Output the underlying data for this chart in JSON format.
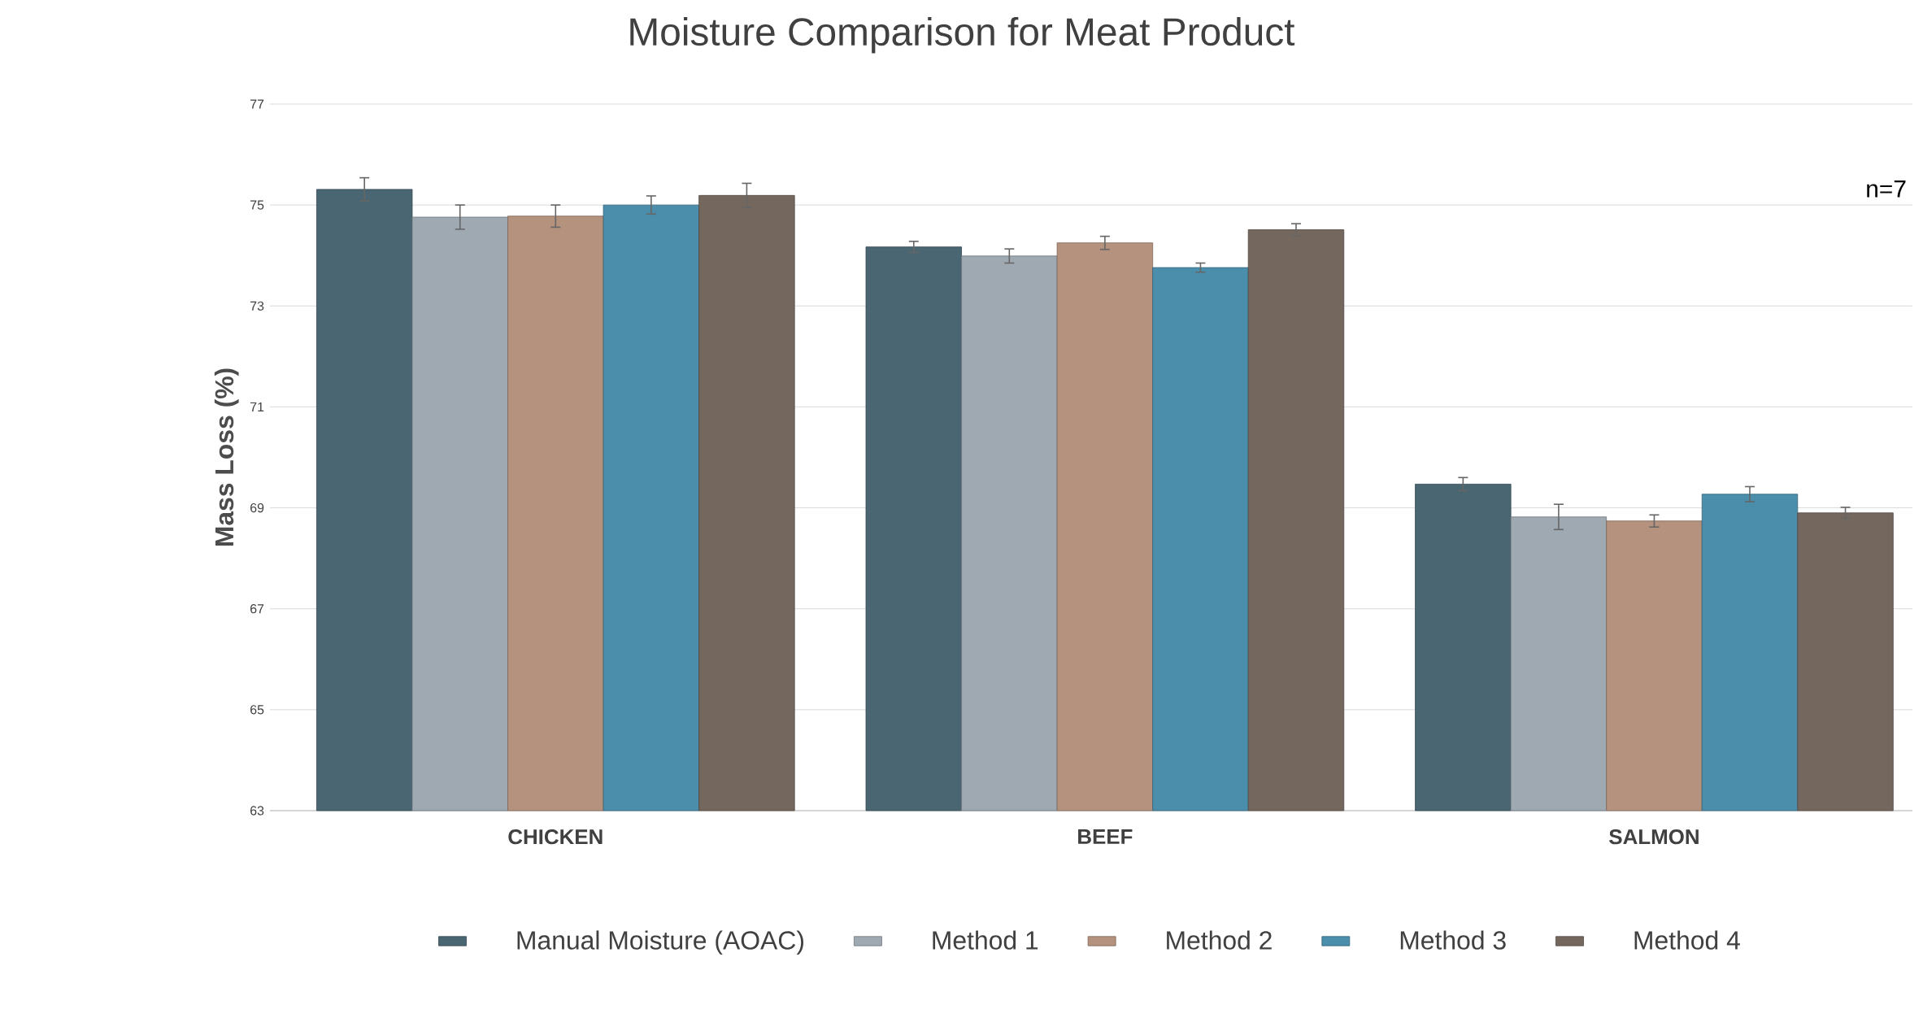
{
  "chart_data": {
    "type": "bar",
    "title": "Moisture Comparison for Meat Product",
    "ylabel": "Mass Loss (%)",
    "categories": [
      "CHICKEN",
      "BEEF",
      "SALMON"
    ],
    "series": [
      {
        "name": "Manual Moisture (AOAC)",
        "color": "#4a6672",
        "values": [
          75.31,
          74.17,
          69.47
        ],
        "errors": [
          0.23,
          0.11,
          0.13
        ]
      },
      {
        "name": "Method 1",
        "color": "#9fa9b2",
        "values": [
          74.76,
          73.99,
          68.82
        ],
        "errors": [
          0.24,
          0.14,
          0.25
        ]
      },
      {
        "name": "Method 2",
        "color": "#b4927d",
        "values": [
          74.78,
          74.25,
          68.74
        ],
        "errors": [
          0.22,
          0.13,
          0.12
        ]
      },
      {
        "name": "Method 3",
        "color": "#4a8eab",
        "values": [
          75.0,
          73.76,
          69.27
        ],
        "errors": [
          0.18,
          0.09,
          0.15
        ]
      },
      {
        "name": "Method 4",
        "color": "#74675e",
        "values": [
          75.19,
          74.51,
          68.9
        ],
        "errors": [
          0.24,
          0.12,
          0.11
        ]
      }
    ],
    "ylim": [
      63,
      77
    ],
    "yticks": [
      63,
      65,
      67,
      69,
      71,
      73,
      75,
      77
    ],
    "grid": "y",
    "legend": "bottom",
    "annotations": [
      "n=7"
    ]
  }
}
